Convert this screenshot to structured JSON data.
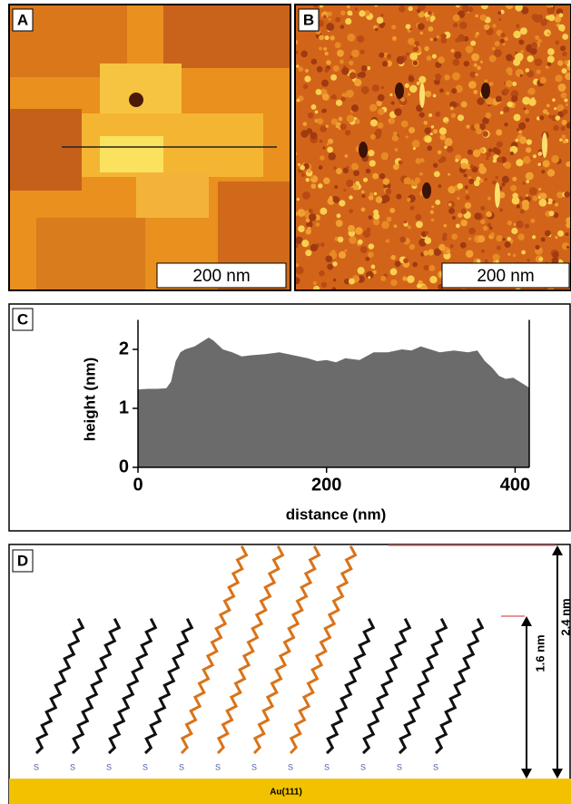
{
  "panels": {
    "a": {
      "label": "A",
      "scale_bar": "200 nm"
    },
    "b": {
      "label": "B",
      "scale_bar": "200 nm"
    }
  },
  "chart_data": {
    "type": "area",
    "panel_label": "C",
    "x_label": "distance (nm)",
    "y_label": "height (nm)",
    "x": [
      0,
      10,
      20,
      30,
      35,
      40,
      45,
      50,
      60,
      70,
      75,
      80,
      90,
      100,
      110,
      120,
      135,
      150,
      165,
      180,
      190,
      200,
      210,
      220,
      235,
      250,
      265,
      280,
      290,
      300,
      310,
      320,
      335,
      350,
      360,
      368,
      375,
      383,
      390,
      398,
      405,
      410,
      415
    ],
    "values": [
      1.32,
      1.33,
      1.33,
      1.34,
      1.45,
      1.8,
      1.95,
      2.0,
      2.05,
      2.15,
      2.2,
      2.15,
      2.0,
      1.95,
      1.88,
      1.9,
      1.92,
      1.95,
      1.9,
      1.85,
      1.8,
      1.82,
      1.78,
      1.85,
      1.82,
      1.95,
      1.95,
      2.0,
      1.98,
      2.05,
      2.0,
      1.95,
      1.98,
      1.95,
      1.98,
      1.8,
      1.7,
      1.55,
      1.5,
      1.52,
      1.45,
      1.4,
      1.35
    ],
    "color": "#6b6b6b",
    "xlim": [
      0,
      415
    ],
    "ylim": [
      0,
      2.5
    ],
    "xticks": [
      0,
      200,
      400
    ],
    "yticks": [
      0,
      1,
      2
    ]
  },
  "diagram": {
    "panel_label": "D",
    "short_height": "1.6 nm",
    "long_height": "2.4 nm",
    "substrate": "Au(111)",
    "atom": "S"
  }
}
